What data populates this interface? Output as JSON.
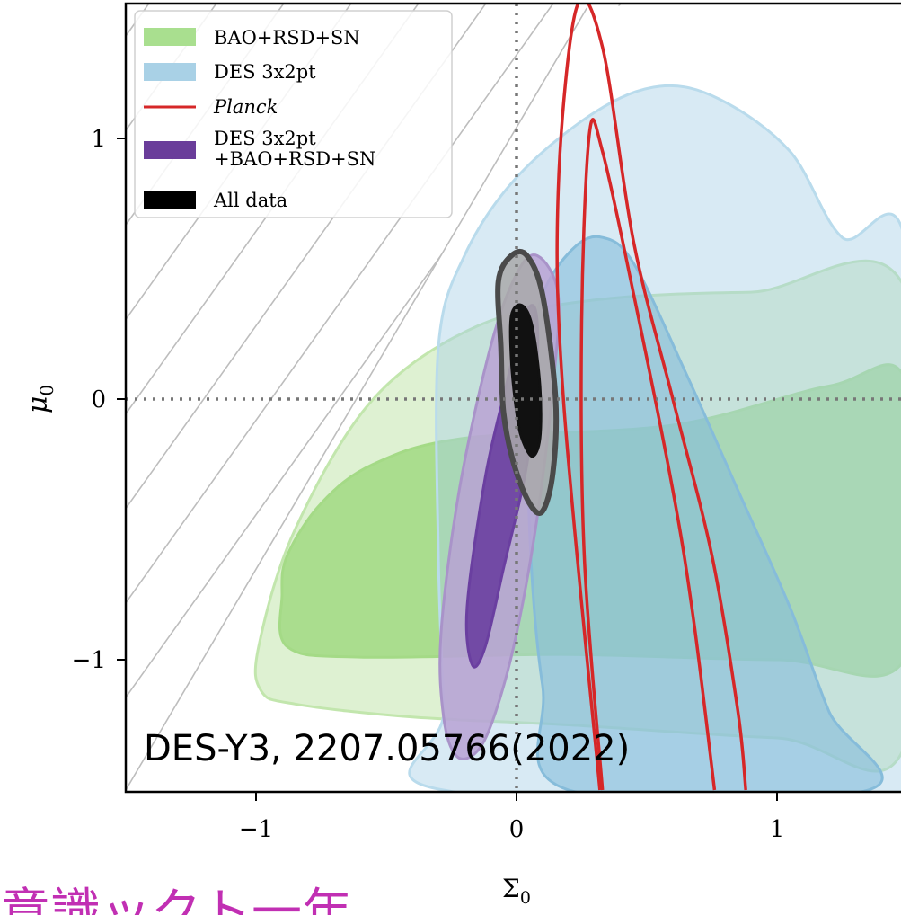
{
  "chart_data": {
    "type": "contour",
    "xlabel": "Σ",
    "xlabel_sub": "0",
    "ylabel": "μ",
    "ylabel_sub": "0",
    "xlim": [
      -1.5,
      1.5
    ],
    "ylim": [
      -1.5,
      1.5
    ],
    "x_ticks": [
      -1,
      0,
      1
    ],
    "x_tick_labels": [
      "−1",
      "0",
      "1"
    ],
    "y_ticks": [
      -1,
      0,
      1
    ],
    "y_tick_labels": [
      "−1",
      "0",
      "1"
    ],
    "reference_lines": {
      "x": 0,
      "y": 0,
      "style": "dotted"
    },
    "excluded_region": {
      "description_hatch": "diagonal",
      "boundary_line": [
        [
          -1.5,
          -1.5
        ],
        [
          0.27,
          1.5
        ]
      ]
    },
    "legend": {
      "placement": "top-left",
      "entries": [
        {
          "label": "BAO+RSD+SN",
          "color": "#9fd97f",
          "italic": false
        },
        {
          "label": "DES 3x2pt",
          "color": "#a9d1e6",
          "italic": false
        },
        {
          "label": "Planck",
          "color": "#d62728",
          "italic": true,
          "line": true
        },
        {
          "label": "DES 3x2pt\n+BAO+RSD+SN",
          "color": "#6a3d9a",
          "italic": false
        },
        {
          "label": "All data",
          "color": "#000000",
          "italic": false
        }
      ]
    },
    "series": [
      {
        "name": "BAO+RSD+SN",
        "color": "#8fd06a",
        "levels": [
          {
            "level": "95%",
            "points": [
              [
                -0.99,
                -0.95
              ],
              [
                -0.98,
                -1.12
              ],
              [
                -0.85,
                -1.17
              ],
              [
                -0.4,
                -1.22
              ],
              [
                0.2,
                -1.25
              ],
              [
                1.0,
                -1.3
              ],
              [
                1.5,
                -1.3
              ],
              [
                1.5,
                0.4
              ],
              [
                0.9,
                0.41
              ],
              [
                0.3,
                0.38
              ],
              [
                -0.15,
                0.28
              ],
              [
                -0.55,
                0.0
              ],
              [
                -0.85,
                -0.5
              ]
            ]
          },
          {
            "level": "68%",
            "points": [
              [
                -0.9,
                -0.75
              ],
              [
                -0.88,
                -0.95
              ],
              [
                -0.6,
                -0.99
              ],
              [
                0.2,
                -0.98
              ],
              [
                1.0,
                -1.0
              ],
              [
                1.5,
                -0.98
              ],
              [
                1.5,
                0.05
              ],
              [
                1.2,
                0.05
              ],
              [
                0.6,
                -0.1
              ],
              [
                -0.2,
                -0.15
              ],
              [
                -0.55,
                -0.25
              ],
              [
                -0.75,
                -0.4
              ],
              [
                -0.88,
                -0.6
              ]
            ]
          }
        ]
      },
      {
        "name": "DES 3x2pt",
        "color": "#9ccbe3",
        "levels": [
          {
            "level": "95%",
            "points": [
              [
                -0.3,
                0.2
              ],
              [
                -0.2,
                0.55
              ],
              [
                0.0,
                0.85
              ],
              [
                0.3,
                1.1
              ],
              [
                0.55,
                1.2
              ],
              [
                0.78,
                1.15
              ],
              [
                1.05,
                0.95
              ],
              [
                1.25,
                0.62
              ],
              [
                1.5,
                0.55
              ],
              [
                1.5,
                -1.5
              ],
              [
                -0.28,
                -1.5
              ],
              [
                -0.28,
                -1.2
              ],
              [
                -0.3,
                -0.6
              ]
            ]
          },
          {
            "level": "68%",
            "points": [
              [
                0.1,
                0.4
              ],
              [
                0.22,
                0.58
              ],
              [
                0.33,
                0.62
              ],
              [
                0.45,
                0.52
              ],
              [
                0.65,
                0.1
              ],
              [
                0.85,
                -0.35
              ],
              [
                1.05,
                -0.8
              ],
              [
                1.2,
                -1.2
              ],
              [
                1.35,
                -1.5
              ],
              [
                0.2,
                -1.5
              ],
              [
                0.1,
                -1.1
              ],
              [
                0.05,
                -0.5
              ],
              [
                0.05,
                0.1
              ]
            ]
          }
        ]
      },
      {
        "name": "Planck",
        "color": "#d62728",
        "line": true,
        "levels": [
          {
            "level": "95%",
            "points": [
              [
                0.32,
                -1.5
              ],
              [
                0.18,
                0.0
              ],
              [
                0.16,
                0.8
              ],
              [
                0.23,
                1.5
              ],
              [
                0.33,
                1.35
              ],
              [
                0.45,
                0.6
              ],
              [
                0.6,
                0.0
              ],
              [
                0.75,
                -0.6
              ],
              [
                0.85,
                -1.2
              ],
              [
                0.88,
                -1.5
              ]
            ]
          },
          {
            "level": "68%",
            "points": [
              [
                0.33,
                -1.5
              ],
              [
                0.26,
                -0.6
              ],
              [
                0.25,
                0.3
              ],
              [
                0.28,
                1.02
              ],
              [
                0.33,
                0.95
              ],
              [
                0.45,
                0.4
              ],
              [
                0.6,
                -0.35
              ],
              [
                0.68,
                -0.85
              ],
              [
                0.76,
                -1.5
              ]
            ]
          }
        ]
      },
      {
        "name": "DES 3x2pt\n+BAO+RSD+SN",
        "color": "#6a3d9a",
        "levels": [
          {
            "level": "95%",
            "points": [
              [
                -0.28,
                -1.22
              ],
              [
                -0.29,
                -0.9
              ],
              [
                -0.22,
                -0.35
              ],
              [
                -0.1,
                0.2
              ],
              [
                0.0,
                0.48
              ],
              [
                0.08,
                0.55
              ],
              [
                0.16,
                0.4
              ],
              [
                0.14,
                0.05
              ],
              [
                0.08,
                -0.45
              ],
              [
                0.0,
                -0.9
              ],
              [
                -0.08,
                -1.2
              ],
              [
                -0.15,
                -1.35
              ],
              [
                -0.23,
                -1.37
              ]
            ]
          },
          {
            "level": "68%",
            "points": [
              [
                -0.17,
                -1.02
              ],
              [
                -0.19,
                -0.8
              ],
              [
                -0.12,
                -0.3
              ],
              [
                -0.04,
                0.05
              ],
              [
                0.02,
                0.3
              ],
              [
                0.07,
                0.35
              ],
              [
                0.08,
                0.15
              ],
              [
                0.04,
                -0.25
              ],
              [
                -0.05,
                -0.65
              ],
              [
                -0.12,
                -0.95
              ]
            ]
          }
        ]
      },
      {
        "name": "All data",
        "color": "#111111",
        "levels": [
          {
            "level": "95%",
            "points": [
              [
                -0.06,
                0.2
              ],
              [
                -0.07,
                0.45
              ],
              [
                -0.02,
                0.55
              ],
              [
                0.04,
                0.55
              ],
              [
                0.1,
                0.4
              ],
              [
                0.15,
                0.0
              ],
              [
                0.14,
                -0.28
              ],
              [
                0.1,
                -0.43
              ],
              [
                0.05,
                -0.4
              ],
              [
                -0.01,
                -0.25
              ],
              [
                -0.05,
                -0.05
              ]
            ]
          },
          {
            "level": "68%",
            "points": [
              [
                -0.02,
                0.15
              ],
              [
                -0.02,
                0.32
              ],
              [
                0.02,
                0.36
              ],
              [
                0.06,
                0.28
              ],
              [
                0.09,
                0.05
              ],
              [
                0.09,
                -0.15
              ],
              [
                0.06,
                -0.22
              ],
              [
                0.02,
                -0.15
              ],
              [
                0.0,
                -0.05
              ]
            ]
          }
        ]
      }
    ],
    "annotation": {
      "text": "DES-Y3, 2207.05766(2022)",
      "x": -1.47,
      "y": -1.32
    }
  },
  "overlay_text": {
    "fragment": "意識ックト一年",
    "color": "#c12fb3"
  }
}
